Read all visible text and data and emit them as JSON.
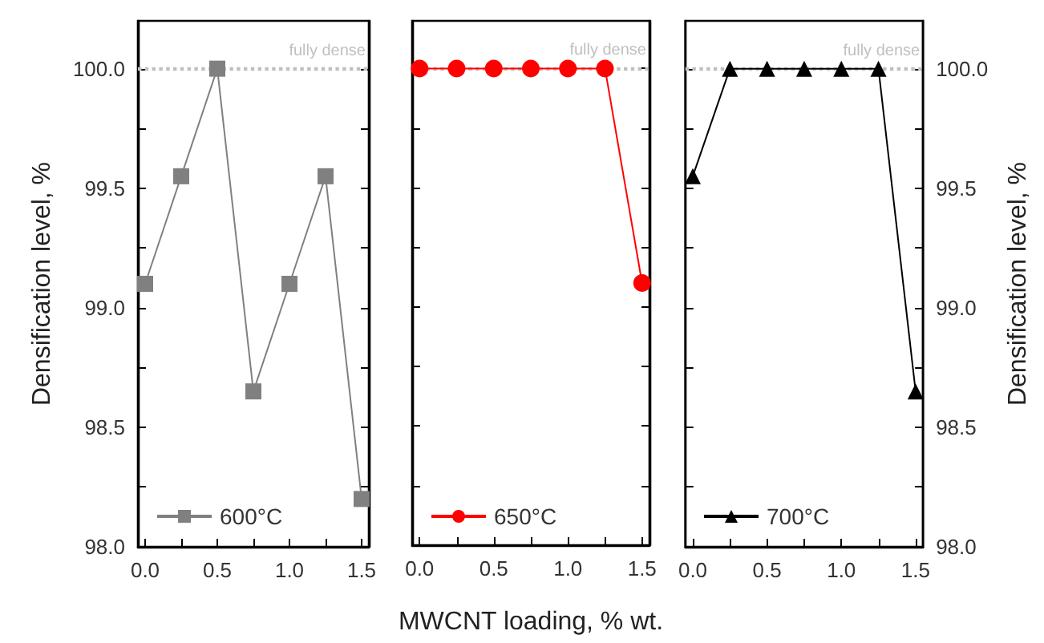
{
  "chart_data": [
    {
      "type": "line",
      "ylabel": "Densification level, %",
      "x": [
        0,
        0.25,
        0.5,
        0.75,
        1,
        1.25,
        1.5
      ],
      "xlim": [
        -0.05,
        1.55
      ],
      "xticks": [
        {
          "value": 0,
          "label": "0.0"
        },
        {
          "value": 0.25,
          "label": null
        },
        {
          "value": 0.5,
          "label": "0.5"
        },
        {
          "value": 0.75,
          "label": null
        },
        {
          "value": 1,
          "label": "1.0"
        },
        {
          "value": 1.25,
          "label": null
        },
        {
          "value": 1.5,
          "label": "1.5"
        }
      ],
      "ylim": [
        98,
        100.2
      ],
      "yticks": [
        {
          "value": 98,
          "label": "98.0"
        },
        {
          "value": 98.25,
          "label": null
        },
        {
          "value": 98.5,
          "label": "98.5"
        },
        {
          "value": 98.75,
          "label": null
        },
        {
          "value": 99,
          "label": "99.0"
        },
        {
          "value": 99.25,
          "label": null
        },
        {
          "value": 99.5,
          "label": "99.5"
        },
        {
          "value": 99.75,
          "label": null
        },
        {
          "value": 100,
          "label": "100.0"
        }
      ],
      "marker": "square",
      "legend": "bottom left",
      "grid": false,
      "series": [
        {
          "name": "600°C",
          "color": "#808080",
          "values": [
            99.1,
            99.55,
            100,
            98.65,
            99.1,
            99.55,
            98.2
          ]
        }
      ],
      "ref_lines": [
        {
          "axis": "y",
          "value": 100,
          "label": "fully dense",
          "color": "#c0c0c0",
          "line_style": "dotted"
        }
      ]
    },
    {
      "type": "line",
      "xlabel": "MWCNT loading, % wt.",
      "x": [
        0,
        0.25,
        0.5,
        0.75,
        1,
        1.25,
        1.5
      ],
      "xlim": [
        -0.05,
        1.55
      ],
      "xticks": [
        {
          "value": 0,
          "label": "0.0"
        },
        {
          "value": 0.25,
          "label": null
        },
        {
          "value": 0.5,
          "label": "0.5"
        },
        {
          "value": 0.75,
          "label": null
        },
        {
          "value": 1,
          "label": "1.0"
        },
        {
          "value": 1.25,
          "label": null
        },
        {
          "value": 1.5,
          "label": "1.5"
        }
      ],
      "ylim": [
        98,
        100.2
      ],
      "yticks": [
        98,
        98.25,
        98.5,
        98.75,
        99,
        99.25,
        99.5,
        99.75,
        100
      ],
      "tick_labels": "x",
      "marker": "circle",
      "legend": "bottom left",
      "grid": false,
      "series": [
        {
          "name": "650°C",
          "color": "#ff0000",
          "values": [
            100,
            100,
            100,
            100,
            100,
            100,
            99.1
          ]
        }
      ],
      "ref_lines": [
        {
          "axis": "y",
          "value": 100,
          "label": "fully dense",
          "color": "#c0c0c0",
          "line_style": "dotted"
        }
      ]
    },
    {
      "type": "line",
      "y2label": "Densification level, %",
      "x": [
        0,
        0.25,
        0.5,
        0.75,
        1,
        1.25,
        1.5
      ],
      "xlim": [
        -0.05,
        1.55
      ],
      "xticks": [
        {
          "value": 0,
          "label": "0.0"
        },
        {
          "value": 0.25,
          "label": null
        },
        {
          "value": 0.5,
          "label": "0.5"
        },
        {
          "value": 0.75,
          "label": null
        },
        {
          "value": 1,
          "label": "1.0"
        },
        {
          "value": 1.25,
          "label": null
        },
        {
          "value": 1.5,
          "label": "1.5"
        }
      ],
      "y2lim": [
        98,
        100.2
      ],
      "y2ticks": [
        {
          "value": 98,
          "label": "98.0"
        },
        {
          "value": 98.25,
          "label": null
        },
        {
          "value": 98.5,
          "label": "98.5"
        },
        {
          "value": 98.75,
          "label": null
        },
        {
          "value": 99,
          "label": "99.0"
        },
        {
          "value": 99.25,
          "label": null
        },
        {
          "value": 99.5,
          "label": "99.5"
        },
        {
          "value": 99.75,
          "label": null
        },
        {
          "value": 100,
          "label": "100.0"
        }
      ],
      "marker": "triangle",
      "legend": "bottom left",
      "grid": false,
      "series": [
        {
          "name": "700°C",
          "color": "#000000",
          "axis": "y2",
          "values": [
            99.55,
            100,
            100,
            100,
            100,
            100,
            98.65
          ]
        }
      ],
      "ref_lines": [
        {
          "axis": "y2",
          "value": 100,
          "label": "fully dense",
          "color": "#c0c0c0",
          "line_style": "dotted"
        }
      ]
    }
  ]
}
